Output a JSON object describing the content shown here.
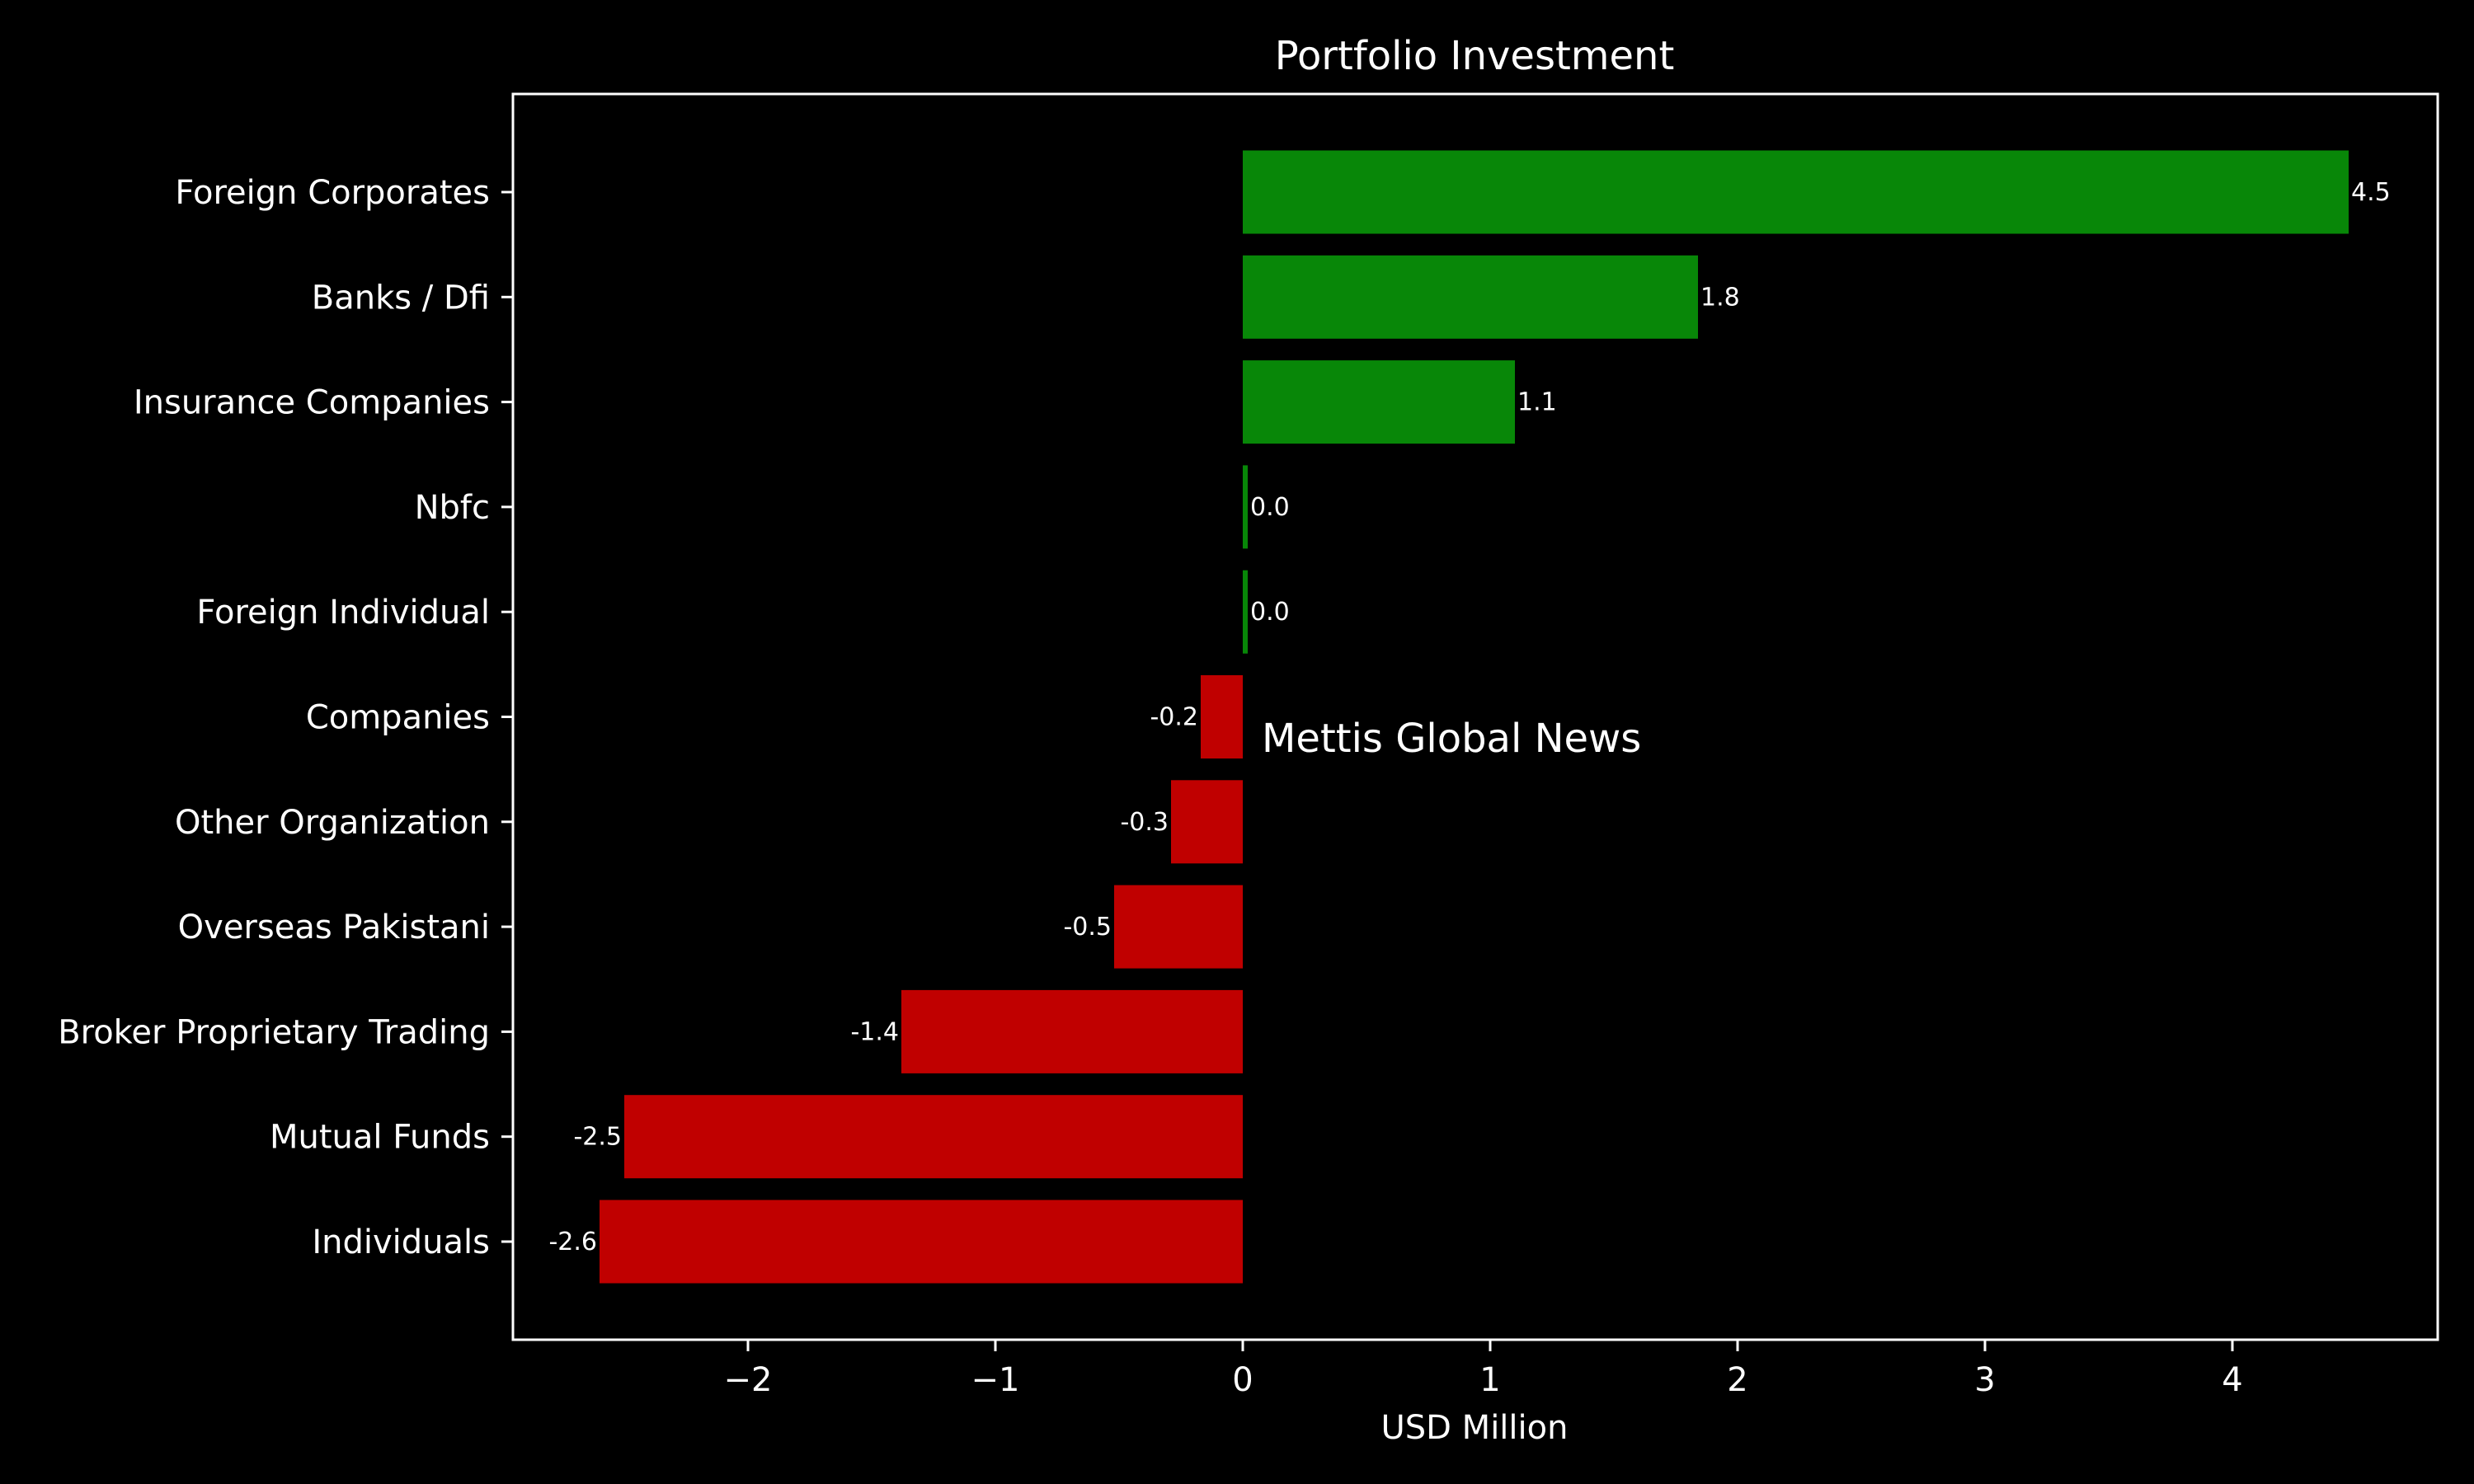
{
  "chart_data": {
    "type": "bar",
    "orientation": "horizontal",
    "title": "Portfolio Investment",
    "xlabel": "USD Million",
    "ylabel": "",
    "categories": [
      "Foreign Corporates",
      "Banks / Dfi",
      "Insurance Companies",
      "Nbfc",
      "Foreign Individual",
      "Companies",
      "Other Organization",
      "Overseas Pakistani",
      "Broker Proprietary Trading",
      "Mutual Funds",
      "Individuals"
    ],
    "values": [
      4.47,
      1.84,
      1.1,
      0.02,
      0.02,
      -0.17,
      -0.29,
      -0.52,
      -1.38,
      -2.5,
      -2.6
    ],
    "data_labels": [
      "4.5",
      "1.8",
      "1.1",
      "0.0",
      "0.0",
      "-0.2",
      "-0.3",
      "-0.5",
      "-1.4",
      "-2.5",
      "-2.6"
    ],
    "xlim": [
      -2.95,
      4.83
    ],
    "xticks": [
      -2,
      -1,
      0,
      1,
      2,
      3,
      4
    ],
    "xtick_labels": [
      "−2",
      "−1",
      "0",
      "1",
      "2",
      "3",
      "4"
    ],
    "grid": false,
    "colors": {
      "positive": "#088708",
      "negative": "#c00000",
      "background": "#000000",
      "axes": "#ffffff",
      "text": "#ffffff",
      "watermark": "#6b3a12"
    }
  },
  "watermark": "Mettis Global News"
}
